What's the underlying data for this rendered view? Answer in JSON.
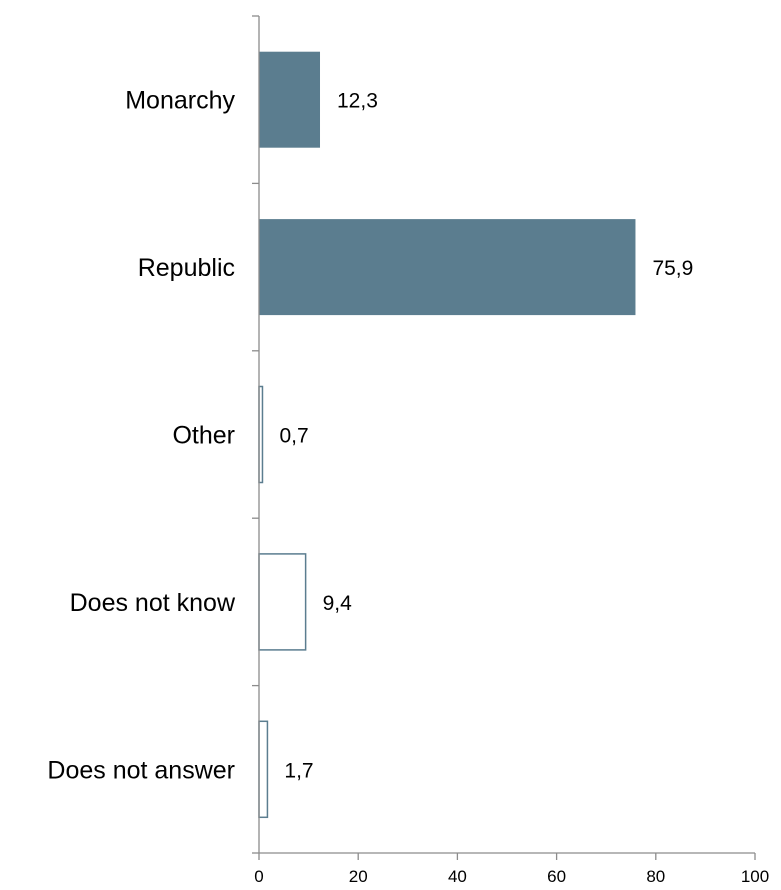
{
  "chart_data": {
    "type": "bar",
    "orientation": "horizontal",
    "categories": [
      "Monarchy",
      "Republic",
      "Other",
      "Does not know",
      "Does not answer"
    ],
    "values": [
      12.3,
      75.9,
      0.7,
      9.4,
      1.7
    ],
    "value_labels": [
      "12,3",
      "75,9",
      "0,7",
      "9,4",
      "1,7"
    ],
    "bar_styles": [
      "filled",
      "filled",
      "outline",
      "outline",
      "outline"
    ],
    "xlim": [
      0,
      100
    ],
    "x_ticks": [
      0,
      20,
      40,
      60,
      80,
      100
    ],
    "x_tick_labels": [
      "0",
      "20",
      "40",
      "60",
      "80",
      "100"
    ],
    "title": "",
    "xlabel": "",
    "ylabel": "",
    "grid": false,
    "colors": {
      "bar_fill": "#5b7d8f",
      "bar_outline": "#5b7d8f",
      "axis": "#8c8c8c",
      "text": "#000000"
    }
  }
}
